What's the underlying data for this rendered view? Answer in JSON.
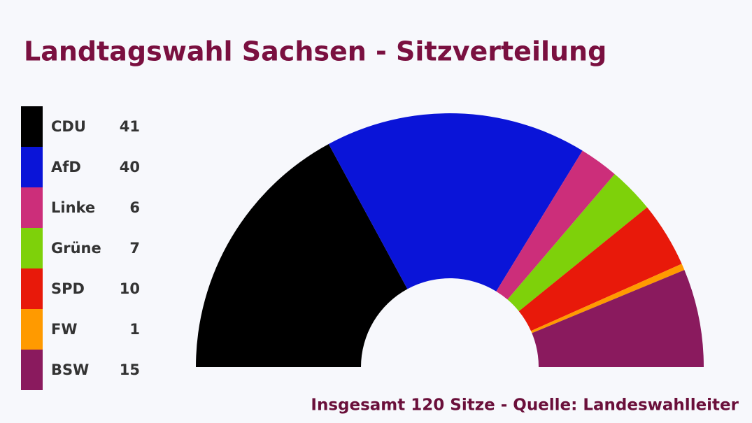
{
  "chart_data": {
    "type": "semi-donut",
    "title": "Landtagswahl Sachsen - Sitzverteilung",
    "footer": "Insgesamt 120 Sitze - Quelle: Landeswahlleiter",
    "categories": [
      "CDU",
      "AfD",
      "Linke",
      "Grüne",
      "SPD",
      "FW",
      "BSW"
    ],
    "values": [
      41,
      40,
      6,
      7,
      10,
      1,
      15
    ],
    "colors": [
      "#000000",
      "#0a14d8",
      "#cc2e7a",
      "#7ed10a",
      "#e8190a",
      "#ff9a00",
      "#8a1a5e"
    ]
  }
}
